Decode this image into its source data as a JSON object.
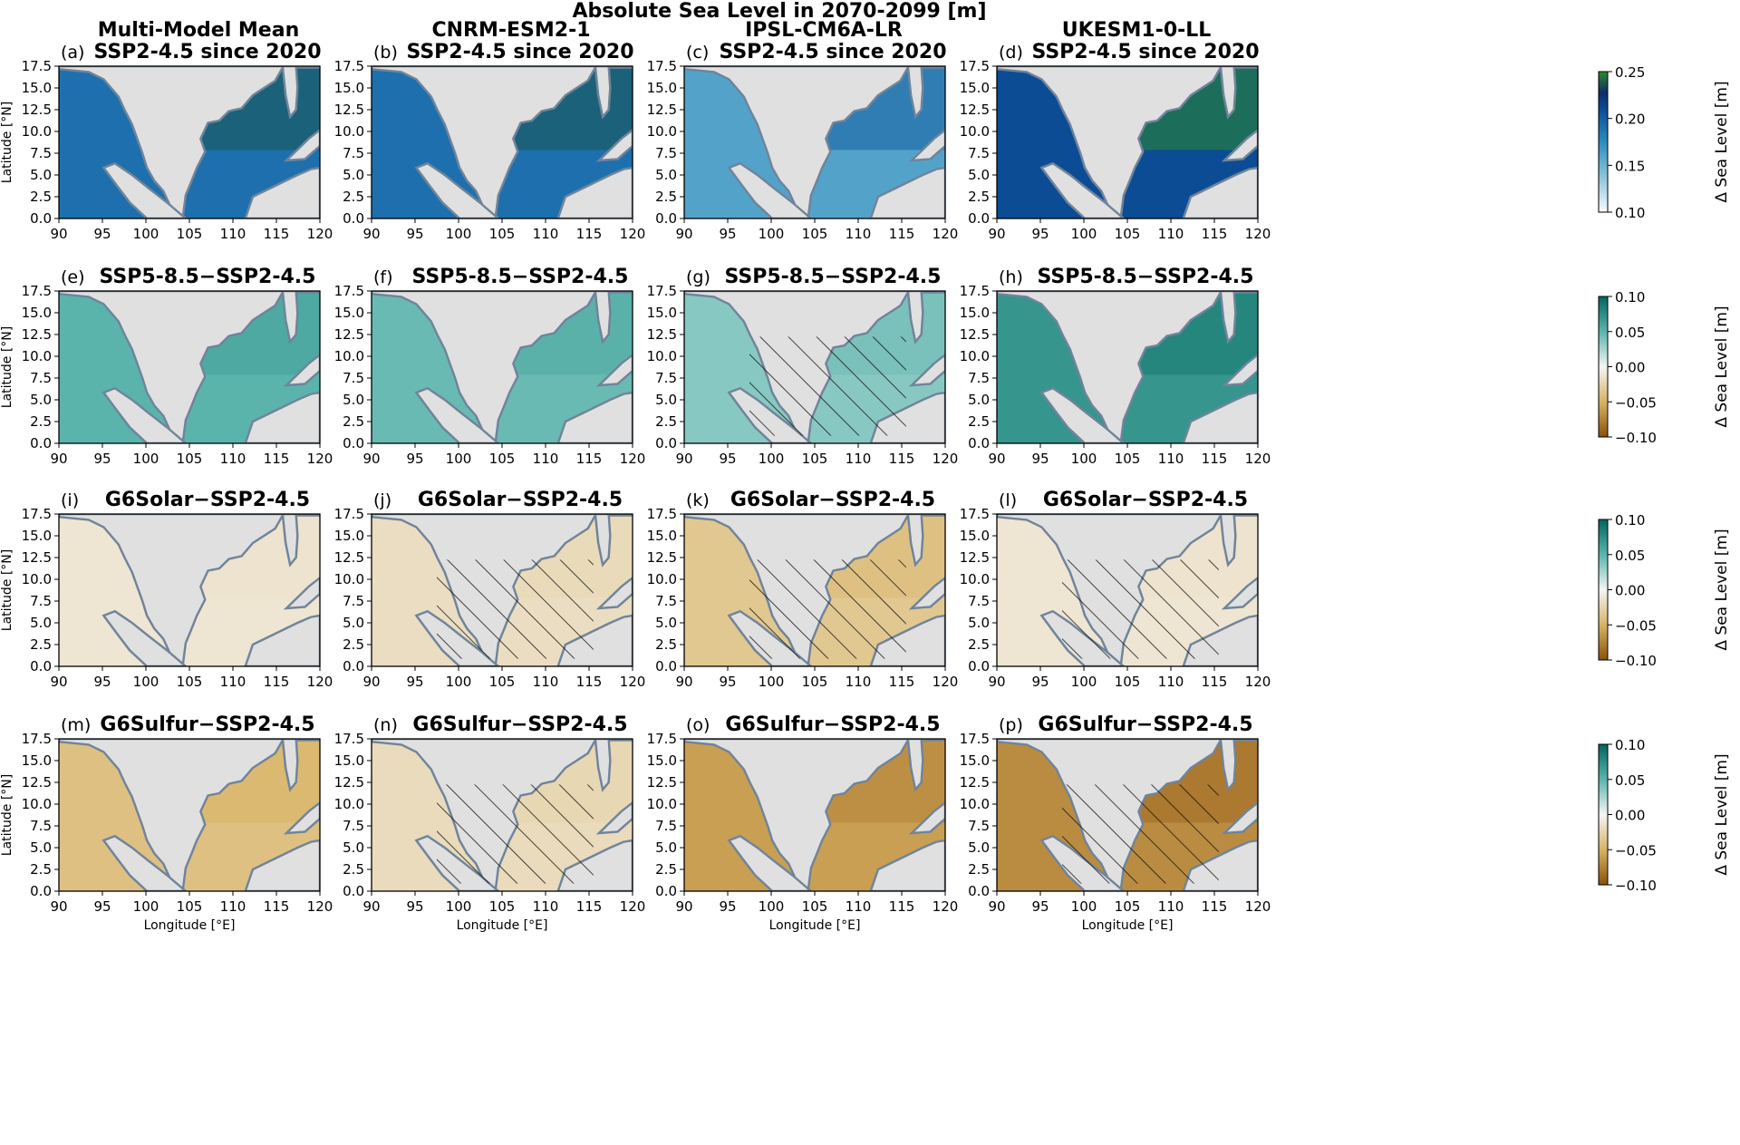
{
  "figure_title": "Absolute Sea Level in 2070-2099 [m]",
  "column_titles": [
    "Multi-Model Mean",
    "CNRM-ESM2-1",
    "IPSL-CM6A-LR",
    "UKESM1-0-LL"
  ],
  "xlabel": "Longitude [$^\\circ$E]",
  "ylabel": "Latitude [$^\\circ$N]",
  "xlabel_display": "Longitude [°E]",
  "ylabel_display": "Latitude [°N]",
  "xticks": [
    "90",
    "95",
    "100",
    "105",
    "110",
    "115",
    "120"
  ],
  "yticks": [
    "0.0",
    "2.5",
    "5.0",
    "7.5",
    "10.0",
    "12.5",
    "15.0",
    "17.5"
  ],
  "colors": {
    "land": "#e0e0e0",
    "coastline": "#70849a",
    "ocean_blue": "#1a7fb0",
    "teal": "#3aaa98",
    "brown": "#c8964a"
  },
  "chart_data": {
    "type": "heatmap",
    "xlim": [
      90,
      120
    ],
    "ylim": [
      0,
      17.5
    ],
    "rows": [
      {
        "titles": [
          "SSP2-4.5 since 2020",
          "SSP2-4.5 since 2020",
          "SSP2-4.5 since 2020",
          "SSP2-4.5 since 2020"
        ],
        "panel_labels": [
          "(a)",
          "(b)",
          "(c)",
          "(d)"
        ],
        "colorbar": {
          "label": "Δ Sea Level [m]",
          "ticks": [
            "0.25",
            "0.20",
            "0.15",
            "0.10"
          ],
          "range": [
            0.1,
            0.25
          ],
          "colormap": "white-blue-navy-green"
        },
        "panel_mean_values": [
          0.19,
          0.19,
          0.16,
          0.21
        ],
        "hatched": [
          false,
          false,
          false,
          false
        ]
      },
      {
        "titles": [
          "SSP5-8.5−SSP2-4.5",
          "SSP5-8.5−SSP2-4.5",
          "SSP5-8.5−SSP2-4.5",
          "SSP5-8.5−SSP2-4.5"
        ],
        "panel_labels": [
          "(e)",
          "(f)",
          "(g)",
          "(h)"
        ],
        "colorbar": {
          "label": "Δ Sea Level [m]",
          "ticks": [
            "0.10",
            "0.05",
            "0.00",
            "−0.05",
            "−0.10"
          ],
          "range": [
            -0.1,
            0.1
          ],
          "colormap": "BrBG"
        },
        "panel_mean_values": [
          0.05,
          0.045,
          0.035,
          0.07
        ],
        "hatched": [
          false,
          false,
          true,
          false
        ]
      },
      {
        "titles": [
          "G6Solar−SSP2-4.5",
          "G6Solar−SSP2-4.5",
          "G6Solar−SSP2-4.5",
          "G6Solar−SSP2-4.5"
        ],
        "panel_labels": [
          "(i)",
          "(j)",
          "(k)",
          "(l)"
        ],
        "colorbar": {
          "label": "Δ Sea Level [m]",
          "ticks": [
            "0.10",
            "0.05",
            "0.00",
            "−0.05",
            "−0.10"
          ],
          "range": [
            -0.1,
            0.1
          ],
          "colormap": "BrBG"
        },
        "panel_mean_values": [
          -0.012,
          -0.018,
          -0.035,
          -0.012
        ],
        "hatched": [
          false,
          true,
          true,
          true
        ]
      },
      {
        "titles": [
          "G6Sulfur−SSP2-4.5",
          "G6Sulfur−SSP2-4.5",
          "G6Sulfur−SSP2-4.5",
          "G6Sulfur−SSP2-4.5"
        ],
        "panel_labels": [
          "(m)",
          "(n)",
          "(o)",
          "(p)"
        ],
        "colorbar": {
          "label": "Δ Sea Level [m]",
          "ticks": [
            "0.10",
            "0.05",
            "0.00",
            "−0.05",
            "−0.10"
          ],
          "range": [
            -0.1,
            0.1
          ],
          "colormap": "BrBG"
        },
        "panel_mean_values": [
          -0.04,
          -0.02,
          -0.06,
          -0.07
        ],
        "hatched": [
          false,
          true,
          false,
          true
        ]
      }
    ]
  }
}
